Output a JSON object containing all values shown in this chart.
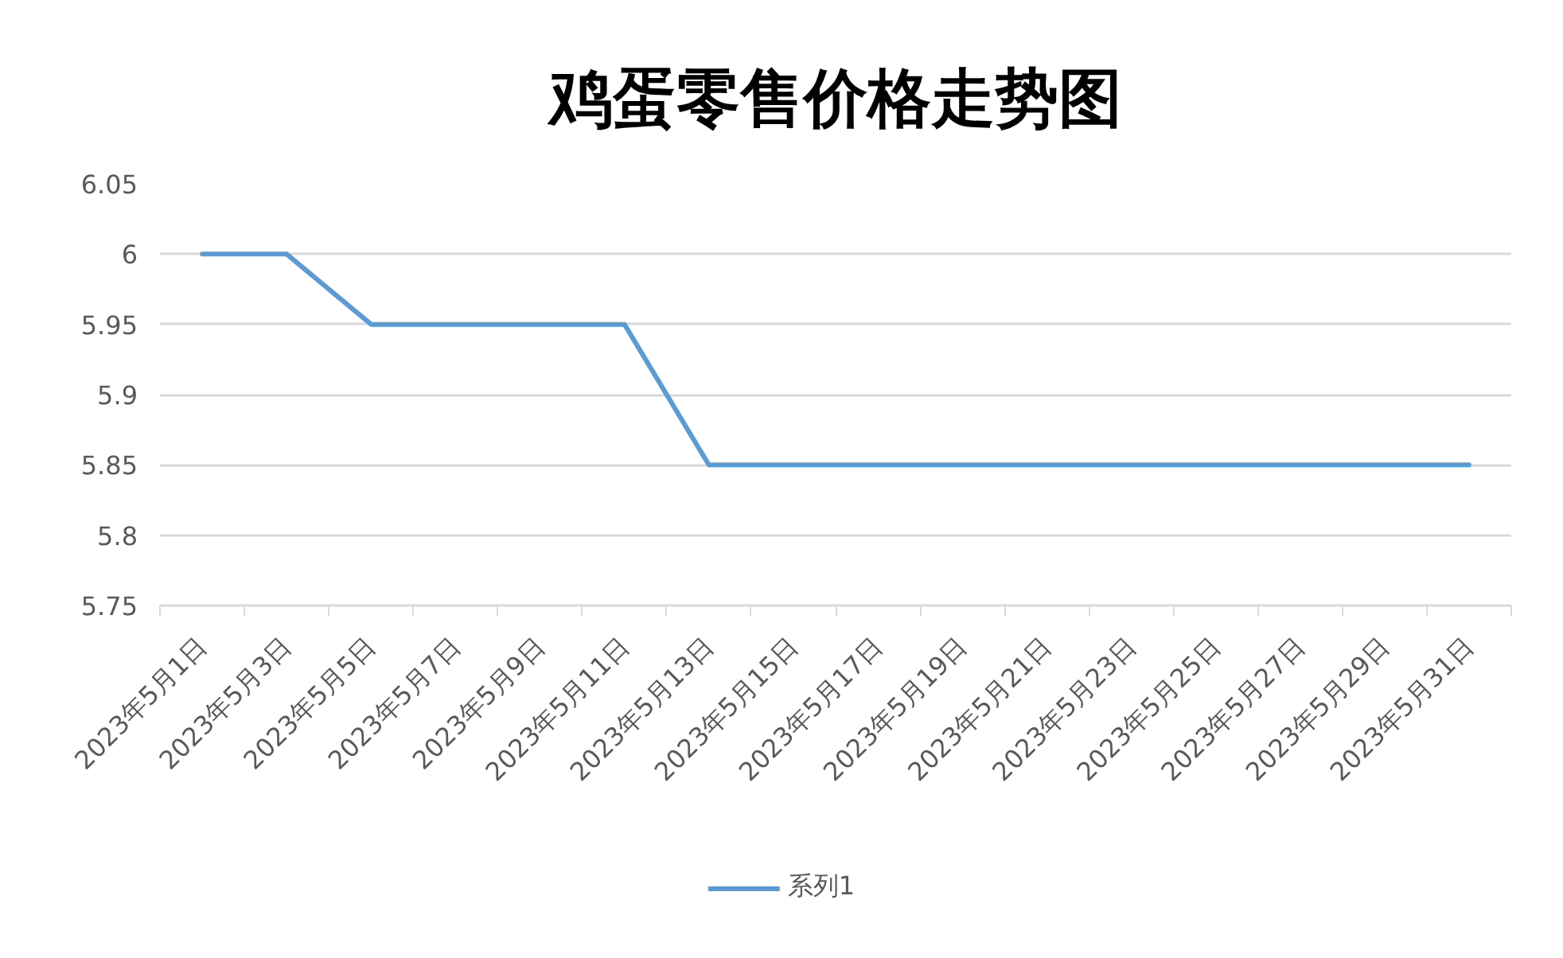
{
  "chart_data": {
    "type": "line",
    "title": "鸡蛋零售价格走势图",
    "categories": [
      "2023年5月1日",
      "2023年5月3日",
      "2023年5月5日",
      "2023年5月7日",
      "2023年5月9日",
      "2023年5月11日",
      "2023年5月13日",
      "2023年5月15日",
      "2023年5月17日",
      "2023年5月19日",
      "2023年5月21日",
      "2023年5月23日",
      "2023年5月25日",
      "2023年5月27日",
      "2023年5月29日",
      "2023年5月31日"
    ],
    "series": [
      {
        "name": "系列1",
        "color": "#5b9bd5",
        "values": [
          6,
          6,
          5.95,
          5.95,
          5.95,
          5.95,
          5.85,
          5.85,
          5.85,
          5.85,
          5.85,
          5.85,
          5.85,
          5.85,
          5.85,
          5.85
        ]
      }
    ],
    "ylim": [
      5.75,
      6.05
    ],
    "yticks": [
      5.75,
      5.8,
      5.85,
      5.9,
      5.95,
      6,
      6.05
    ],
    "grid": "y",
    "legend": "bottom",
    "line_style": "solid"
  }
}
